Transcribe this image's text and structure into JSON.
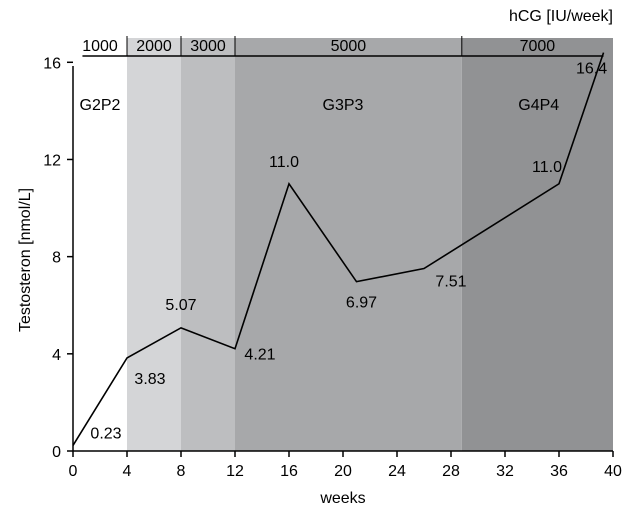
{
  "chart_data": {
    "type": "line",
    "xlabel": "weeks",
    "ylabel": "Testosteron [nmol/L]",
    "xlim": [
      0,
      40
    ],
    "ylim": [
      0,
      17
    ],
    "xticks": [
      0,
      4,
      8,
      12,
      16,
      20,
      24,
      28,
      32,
      36,
      40
    ],
    "yticks": [
      0,
      4,
      8,
      12,
      16
    ],
    "x": [
      0,
      4,
      8,
      12,
      16,
      21,
      26,
      36,
      39.3
    ],
    "y": [
      0.23,
      3.83,
      5.07,
      4.21,
      11.0,
      6.97,
      7.51,
      11.0,
      16.4
    ],
    "data_labels": [
      "0.23",
      "3.83",
      "5.07",
      "4.21",
      "11.0",
      "6.97",
      "7.51",
      "11.0",
      "16.4"
    ],
    "hcg_axis_label": "hCG [IU/week]",
    "hcg_bands": [
      {
        "label": "1000",
        "x0": 0,
        "x1": 4,
        "color": "#ffffff"
      },
      {
        "label": "2000",
        "x0": 4,
        "x1": 8,
        "color": "#d4d5d7"
      },
      {
        "label": "3000",
        "x0": 8,
        "x1": 12,
        "color": "#bdbec0"
      },
      {
        "label": "5000",
        "x0": 12,
        "x1": 28.8,
        "color": "#a7a8aa"
      },
      {
        "label": "7000",
        "x0": 28.8,
        "x1": 40,
        "color": "#919294"
      }
    ],
    "phases": [
      {
        "label": "G2P2",
        "x": 2
      },
      {
        "label": "G3P3",
        "x": 20
      },
      {
        "label": "G4P4",
        "x": 34.5
      }
    ],
    "grid": false
  }
}
